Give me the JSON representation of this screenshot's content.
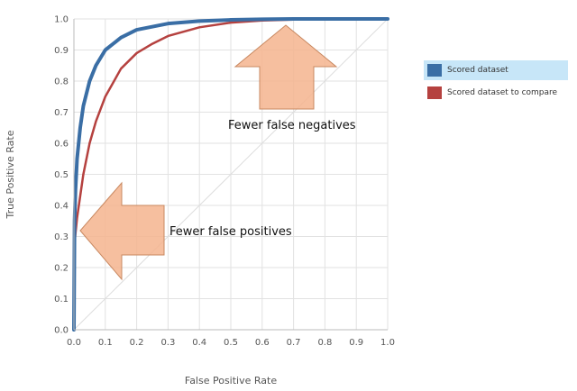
{
  "chart_data": {
    "type": "line",
    "xlabel": "False Positive Rate",
    "ylabel": "True Positive Rate",
    "xlim": [
      0,
      1.0
    ],
    "ylim": [
      0,
      1.0
    ],
    "grid": true,
    "legend_position": "right",
    "xticks": [
      "0.0",
      "0.1",
      "0.2",
      "0.3",
      "0.4",
      "0.5",
      "0.6",
      "0.7",
      "0.8",
      "0.9",
      "1.0"
    ],
    "yticks": [
      "0.0",
      "0.1",
      "0.2",
      "0.3",
      "0.4",
      "0.5",
      "0.6",
      "0.7",
      "0.8",
      "0.9",
      "1.0"
    ],
    "series": [
      {
        "name": "Scored dataset",
        "color": "#3a6ea5",
        "x": [
          0,
          0.002,
          0.005,
          0.01,
          0.02,
          0.03,
          0.05,
          0.07,
          0.1,
          0.15,
          0.2,
          0.3,
          0.4,
          0.5,
          0.6,
          0.7,
          0.8,
          0.9,
          1.0
        ],
        "y": [
          0,
          0.35,
          0.45,
          0.55,
          0.65,
          0.72,
          0.8,
          0.85,
          0.9,
          0.94,
          0.965,
          0.985,
          0.993,
          0.997,
          0.999,
          1.0,
          1.0,
          1.0,
          1.0
        ]
      },
      {
        "name": "Scored dataset to compare",
        "color": "#b5413f",
        "x": [
          0,
          0.002,
          0.005,
          0.01,
          0.02,
          0.03,
          0.05,
          0.07,
          0.1,
          0.15,
          0.2,
          0.25,
          0.3,
          0.4,
          0.5,
          0.6,
          0.7,
          0.8,
          0.9,
          1.0
        ],
        "y": [
          0,
          0.28,
          0.31,
          0.36,
          0.43,
          0.5,
          0.6,
          0.67,
          0.75,
          0.84,
          0.89,
          0.92,
          0.945,
          0.973,
          0.988,
          0.995,
          0.998,
          1.0,
          1.0,
          1.0
        ]
      }
    ],
    "diagonal": {
      "x": [
        0,
        1.0
      ],
      "y": [
        0,
        1.0
      ],
      "color": "#dddddd"
    },
    "annotations": [
      {
        "text": "Fewer false negatives",
        "arrow": "up",
        "color": "#f5b48e"
      },
      {
        "text": "Fewer false positives",
        "arrow": "left",
        "color": "#f5b48e"
      }
    ]
  }
}
